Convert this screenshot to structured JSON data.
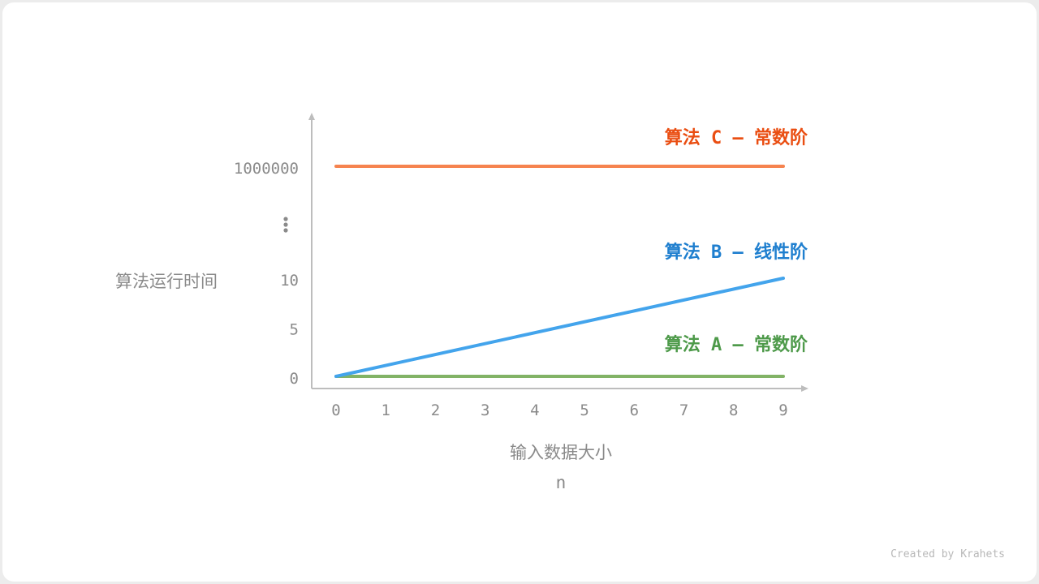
{
  "chart_data": {
    "type": "line",
    "xlabel": "输入数据大小",
    "xlabel_sub": "n",
    "ylabel": "算法运行时间",
    "x_ticks": [
      "0",
      "1",
      "2",
      "3",
      "4",
      "5",
      "6",
      "7",
      "8",
      "9"
    ],
    "y_ticks": [
      "0",
      "5",
      "10",
      "1000000"
    ],
    "y_break": "⋮",
    "xlim": [
      0,
      9
    ],
    "y_scale": "broken",
    "grid": false,
    "series": [
      {
        "name": "算法 A – 常数阶",
        "color": "#82b366",
        "label_color": "#4e9a4a",
        "x": [
          0,
          9
        ],
        "y": [
          0,
          0
        ]
      },
      {
        "name": "算法 B – 线性阶",
        "color": "#43a4ec",
        "label_color": "#1f7fcf",
        "x": [
          0,
          9
        ],
        "y": [
          0,
          10
        ]
      },
      {
        "name": "算法 C – 常数阶",
        "color": "#f6834f",
        "label_color": "#ea4e12",
        "x": [
          0,
          9
        ],
        "y": [
          1000000,
          1000000
        ]
      }
    ]
  },
  "credit": "Created by Krahets",
  "colors": {
    "axis": "#bdbdbd",
    "tick_text": "#8a8a8a"
  }
}
